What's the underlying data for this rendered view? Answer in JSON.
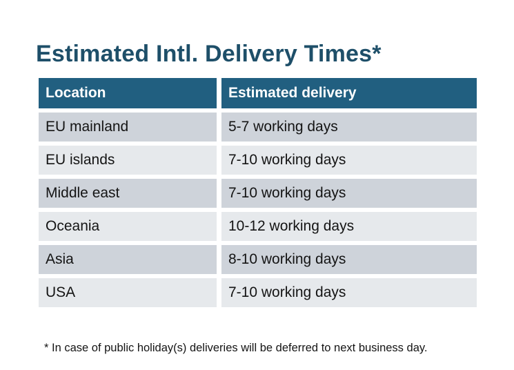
{
  "page": {
    "title": "Estimated Intl. Delivery Times*",
    "footnote": "* In case of public holiday(s) deliveries will be deferred to next business day."
  },
  "colors": {
    "title_text": "#1e4f69",
    "header_bg": "#215f80",
    "header_text": "#ffffff",
    "row_dark": "#ced3da",
    "row_light": "#e6e9ec",
    "body_text": "#141414"
  },
  "table": {
    "columns": [
      "Location",
      "Estimated delivery"
    ],
    "rows": [
      {
        "location": "EU mainland",
        "delivery": "5-7 working days"
      },
      {
        "location": "EU islands",
        "delivery": "7-10 working days"
      },
      {
        "location": "Middle east",
        "delivery": "7-10 working days"
      },
      {
        "location": "Oceania",
        "delivery": "10-12 working days"
      },
      {
        "location": "Asia",
        "delivery": "8-10 working days"
      },
      {
        "location": "USA",
        "delivery": "7-10 working days"
      }
    ]
  }
}
